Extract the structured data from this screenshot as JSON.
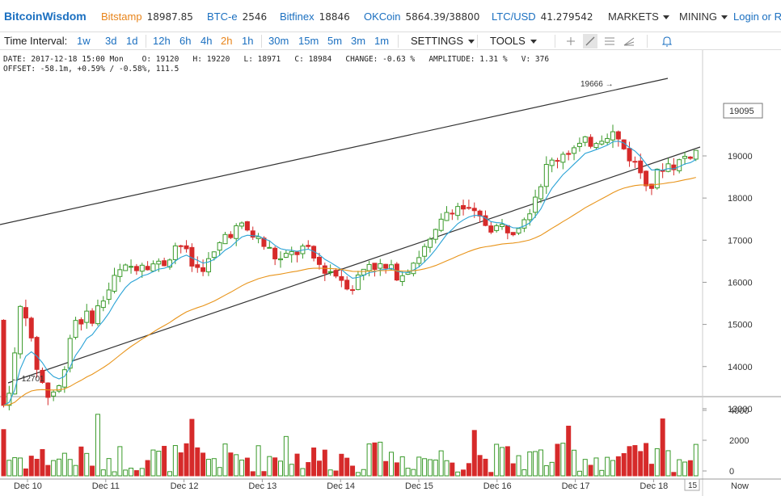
{
  "ticker": {
    "logo": "BitcoinWisdom",
    "exchanges": [
      {
        "name": "Bitstamp",
        "price": "18987.85",
        "active": true
      },
      {
        "name": "BTC-e",
        "price": "2546",
        "active": false
      },
      {
        "name": "Bitfinex",
        "price": "18846",
        "active": false
      },
      {
        "name": "OKCoin",
        "price": "5864.39/38800",
        "active": false
      },
      {
        "name": "LTC/USD",
        "price": "41.279542",
        "active": false
      }
    ],
    "menus": [
      "MARKETS",
      "MINING"
    ],
    "login": "Login or Re"
  },
  "toolbar": {
    "label": "Time Interval:",
    "intervals": [
      "1w",
      "3d",
      "1d",
      "12h",
      "6h",
      "4h",
      "2h",
      "1h",
      "30m",
      "15m",
      "5m",
      "3m",
      "1m"
    ],
    "active_interval": "2h",
    "settings": "SETTINGS",
    "tools": "TOOLS",
    "tool_icons": [
      "crosshair-icon",
      "draw-line-icon",
      "horizontal-lines-icon",
      "fibonacci-icon",
      "bell-icon"
    ]
  },
  "info": {
    "date": "DATE: 2017-12-18 15:00 Mon",
    "open": "O: 19120",
    "high": "H: 19220",
    "low": "L: 18971",
    "close": "C: 18984",
    "change": "CHANGE: -0.63 %",
    "amplitude": "AMPLITUDE: 1.31 %",
    "volume": "V: 376",
    "offset": "OFFSET: -58.1m, +0.59% / -0.58%, 111.5"
  },
  "colors": {
    "up": "#3a9a2a",
    "down": "#d62a2a",
    "ema_fast": "#2aa3d6",
    "ema_slow": "#e8941a",
    "trend": "#333333"
  },
  "chart_data": {
    "type": "candlestick",
    "y_ticks": [
      13000,
      14000,
      15000,
      16000,
      17000,
      18000,
      19000
    ],
    "ylim": [
      12500,
      20000
    ],
    "x_labels": [
      "Dec 10",
      "Dec 11",
      "Dec 12",
      "Dec 13",
      "Dec 14",
      "Dec 15",
      "Dec 16",
      "Dec 17",
      "Dec 18"
    ],
    "x_right_label": "Now",
    "x_current": "15",
    "current_price": "19095",
    "annotations": [
      {
        "text": "19666 →",
        "value": 19666
      },
      {
        "text": "← 12701",
        "value": 12701
      }
    ],
    "volume_ticks": [
      "4000",
      "2000",
      "0"
    ],
    "volume_max": 4400
  }
}
